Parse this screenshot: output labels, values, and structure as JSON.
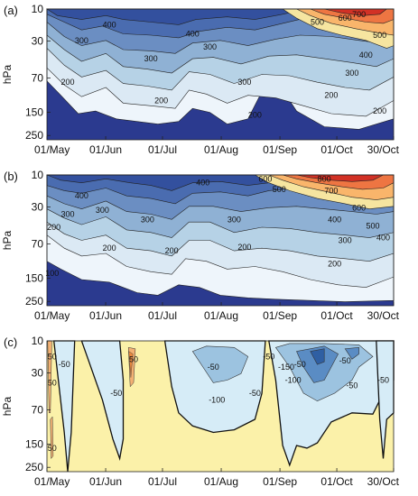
{
  "chart_data": [
    {
      "type": "contour",
      "panel_label": "(a)",
      "ylabel": "hPa",
      "y_scale": "log",
      "y_ticks": [
        "10",
        "30",
        "70",
        "150",
        "250"
      ],
      "x_ticks": [
        "01/May",
        "01/Jun",
        "01/Jul",
        "01/Aug",
        "01/Sep",
        "01/Oct",
        "30/Oct"
      ],
      "contour_levels": [
        100,
        200,
        300,
        400,
        500,
        600,
        700,
        800
      ],
      "contour_labels": [
        "400",
        "300",
        "300",
        "200",
        "200",
        "400",
        "300",
        "300",
        "200",
        "500",
        "600",
        "700",
        "500",
        "400",
        "300",
        "200",
        "200"
      ],
      "colors": [
        "#2b3a8f",
        "#33509e",
        "#4a6cb0",
        "#6b8ec2",
        "#8fb1d4",
        "#b6d2e6",
        "#dbe9f4",
        "#f6e5a0",
        "#f9b56b",
        "#ee7542",
        "#d23125"
      ]
    },
    {
      "type": "contour",
      "panel_label": "(b)",
      "ylabel": "hPa",
      "y_scale": "log",
      "y_ticks": [
        "10",
        "30",
        "70",
        "150",
        "250"
      ],
      "x_ticks": [
        "01/May",
        "01/Jun",
        "01/Jul",
        "01/Aug",
        "01/Sep",
        "01/Oct",
        "30/Oct"
      ],
      "contour_levels": [
        100,
        200,
        300,
        400,
        500,
        600,
        700,
        800
      ],
      "contour_labels": [
        "300",
        "200",
        "100",
        "400",
        "300",
        "200",
        "300",
        "200",
        "400",
        "300",
        "200",
        "600",
        "500",
        "400",
        "300",
        "200",
        "800",
        "700",
        "600",
        "500",
        "400"
      ],
      "colors": [
        "#2b3a8f",
        "#33509e",
        "#4a6cb0",
        "#6b8ec2",
        "#8fb1d4",
        "#b6d2e6",
        "#dbe9f4",
        "#f6e5a0",
        "#f9b56b",
        "#ee7542",
        "#d23125"
      ]
    },
    {
      "type": "contour",
      "panel_label": "(c)",
      "ylabel": "hPa",
      "y_scale": "log",
      "y_ticks": [
        "10",
        "30",
        "70",
        "150",
        "250"
      ],
      "x_ticks": [
        "01/May",
        "01/Jun",
        "01/Jul",
        "01/Aug",
        "01/Sep",
        "01/Oct",
        "30/Oct"
      ],
      "contour_levels": [
        -150,
        -100,
        -50,
        0,
        50
      ],
      "contour_labels": [
        "50",
        "-50",
        "50",
        "50",
        "-50",
        "-50",
        "-100",
        "-50",
        "-50",
        "-150",
        "-100",
        "-50",
        "-50",
        "-50",
        "-50",
        "50"
      ],
      "colors": [
        "#2f5fa3",
        "#5a8cc4",
        "#9cc3e0",
        "#d6ecf7",
        "#fbf1a9",
        "#f3b173",
        "#e8883f"
      ]
    }
  ]
}
